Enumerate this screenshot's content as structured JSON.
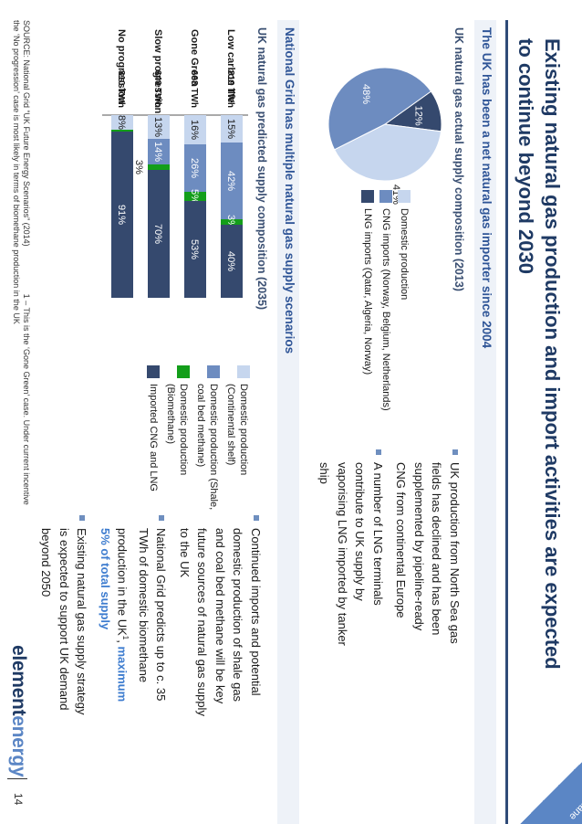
{
  "corner_tag": "methane",
  "title": "Existing natural gas production and import activities are expected to continue beyond 2030",
  "section1": {
    "title": "The UK has been a net natural gas importer since 2004",
    "subtitle": "UK natural gas actual supply composition (2013)",
    "legend": [
      {
        "label": "Domestic production",
        "color": "#c6d6ee"
      },
      {
        "label": "CNG imports (Norway, Belgium, Netherlands)",
        "color": "#6d8cc0"
      },
      {
        "label": "LNG imports (Qatar, Algeria, Norway)",
        "color": "#35496e"
      }
    ],
    "bullets": [
      "UK production from North Sea gas fields has declined and has been supplemented by pipeline-ready CNG from continental Europe",
      "A number of LNG terminals contribute to UK supply by vaporising LNG imported by tanker ship"
    ]
  },
  "section2": {
    "title": "National Grid has multiple natural gas supply scenarios",
    "subtitle": "UK natural gas predicted supply composition (2035)",
    "legend": [
      {
        "label": "Domestic production (Continental shelf)",
        "color": "#c6d6ee"
      },
      {
        "label": "Domestic production (Shale, coal bed methane)",
        "color": "#6d8cc0"
      },
      {
        "label": "Domestic production (Biomethane)",
        "color": "#139e1a"
      },
      {
        "label": "Imported CNG and LNG",
        "color": "#35496e"
      }
    ],
    "bullets": [
      {
        "text": "Continued imports and potential domestic production of shale gas and coal bed methane will be key future sources of natural gas supply to the UK"
      },
      {
        "text_before": "National Grid predicts up to c. 35 TWh of domestic biomethane production in the UK",
        "sup": "1",
        "text_sep": ", ",
        "highlight": "maximum 5% of total supply"
      },
      {
        "text": "Existing natural gas supply strategy is expected to support UK demand beyond 2050"
      }
    ]
  },
  "chart_data": [
    {
      "type": "pie",
      "title": "UK natural gas actual supply composition (2013)",
      "categories": [
        "Domestic production",
        "CNG imports (Norway, Belgium, Netherlands)",
        "LNG imports (Qatar, Algeria, Norway)"
      ],
      "values": [
        41,
        48,
        12
      ],
      "labels": [
        "41%",
        "48%",
        "12%"
      ],
      "colors": [
        "#c6d6ee",
        "#6d8cc0",
        "#35496e"
      ]
    },
    {
      "type": "bar",
      "stacked": true,
      "title": "UK natural gas predicted supply composition (2035)",
      "categories": [
        "Low carbon life",
        "Gone Green",
        "Slow progression",
        "No progression"
      ],
      "totals": [
        "819 TWh",
        "668 TWh",
        "640 TWh",
        "810 TWh"
      ],
      "series": [
        {
          "name": "Domestic production (Continental shelf)",
          "values": [
            15,
            16,
            13,
            8
          ],
          "labels": [
            "15%",
            "16%",
            "13%",
            "8%"
          ],
          "color": "#c6d6ee"
        },
        {
          "name": "Domestic production (Shale, coal bed methane)",
          "values": [
            42,
            26,
            14,
            0
          ],
          "labels": [
            "42%",
            "26%",
            "14%",
            ""
          ],
          "color": "#6d8cc0"
        },
        {
          "name": "Domestic production (Biomethane)",
          "values": [
            3,
            5,
            3,
            1
          ],
          "labels": [
            "3%",
            "5%",
            "3%",
            ""
          ],
          "color": "#139e1a"
        },
        {
          "name": "Imported CNG and LNG",
          "values": [
            40,
            53,
            70,
            91
          ],
          "labels": [
            "40%",
            "53%",
            "70%",
            "91%"
          ],
          "color": "#35496e"
        }
      ],
      "ylim": [
        0,
        100
      ]
    }
  ],
  "footer": {
    "source": "SOURCE: National Grid “UK Future Energy Scenarios” (2014)",
    "note": "1 – This is the ‘Gone Green’ case. Under current incentive",
    "note2": "the ‘No progression’ case is most likely in terms of biomethane production in the UK"
  },
  "logo": {
    "part1": "element",
    "part2": "energy"
  },
  "page_number": "14"
}
